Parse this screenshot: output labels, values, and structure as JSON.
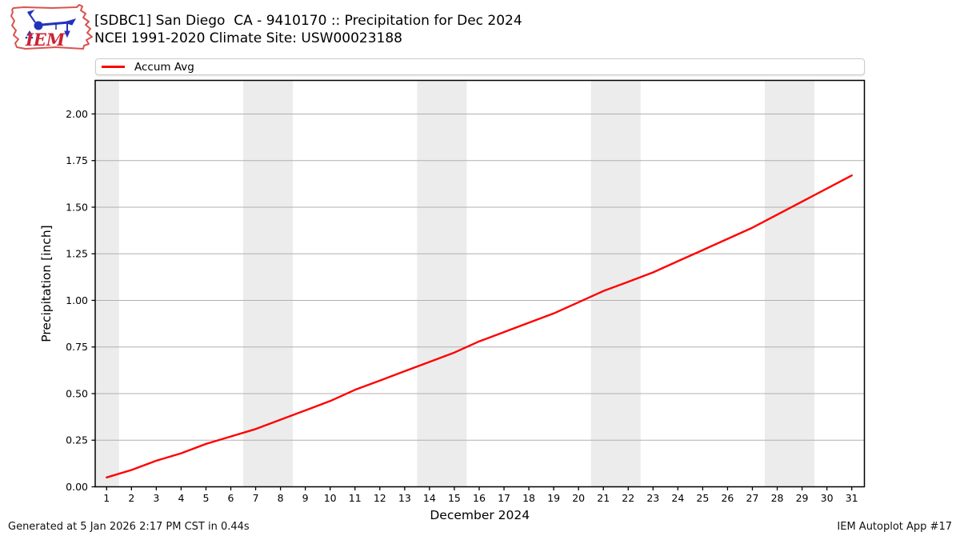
{
  "header": {
    "title_line1": "[SDBC1] San Diego  CA - 9410170 :: Precipitation for Dec 2024",
    "title_line2": "NCEI 1991-2020 Climate Site: USW00023188",
    "logo_text": "IEM"
  },
  "legend": {
    "items": [
      {
        "label": "Accum Avg",
        "color": "#ff0000"
      }
    ]
  },
  "footer": {
    "left": "Generated at 5 Jan 2026 2:17 PM CST in 0.44s",
    "right": "IEM Autoplot App #17"
  },
  "colors": {
    "line": "#ff0000",
    "weekend_band": "#ececec",
    "grid": "#b0b0b0",
    "spine": "#000000",
    "logo_outline": "#d9534f",
    "logo_glyph": "#2233bb",
    "logo_text": "#cc2233"
  },
  "chart_data": {
    "type": "line",
    "title": "[SDBC1] San Diego  CA - 9410170 :: Precipitation for Dec 2024 — NCEI 1991-2020 Climate Site: USW00023188",
    "xlabel": "December 2024",
    "ylabel": "Precipitation [inch]",
    "legend_position": "top",
    "grid": "horizontal-only",
    "xlim": [
      0.54,
      31.51
    ],
    "ylim": [
      0,
      2.18
    ],
    "xticks": [
      1,
      2,
      3,
      4,
      5,
      6,
      7,
      8,
      9,
      10,
      11,
      12,
      13,
      14,
      15,
      16,
      17,
      18,
      19,
      20,
      21,
      22,
      23,
      24,
      25,
      26,
      27,
      28,
      29,
      30,
      31
    ],
    "yticks": [
      0.0,
      0.25,
      0.5,
      0.75,
      1.0,
      1.25,
      1.5,
      1.75,
      2.0
    ],
    "weekend_bands": [
      [
        0.54,
        1.5
      ],
      [
        6.5,
        8.5
      ],
      [
        13.5,
        15.5
      ],
      [
        20.5,
        22.5
      ],
      [
        27.5,
        29.5
      ]
    ],
    "x": [
      1,
      2,
      3,
      4,
      5,
      6,
      7,
      8,
      9,
      10,
      11,
      12,
      13,
      14,
      15,
      16,
      17,
      18,
      19,
      20,
      21,
      22,
      23,
      24,
      25,
      26,
      27,
      28,
      29,
      30,
      31
    ],
    "series": [
      {
        "name": "Accum Avg",
        "color": "#ff0000",
        "values": [
          0.05,
          0.09,
          0.14,
          0.18,
          0.23,
          0.27,
          0.31,
          0.36,
          0.41,
          0.46,
          0.52,
          0.57,
          0.62,
          0.67,
          0.72,
          0.78,
          0.83,
          0.88,
          0.93,
          0.99,
          1.05,
          1.1,
          1.15,
          1.21,
          1.27,
          1.33,
          1.39,
          1.46,
          1.53,
          1.6,
          1.67
        ]
      }
    ]
  }
}
